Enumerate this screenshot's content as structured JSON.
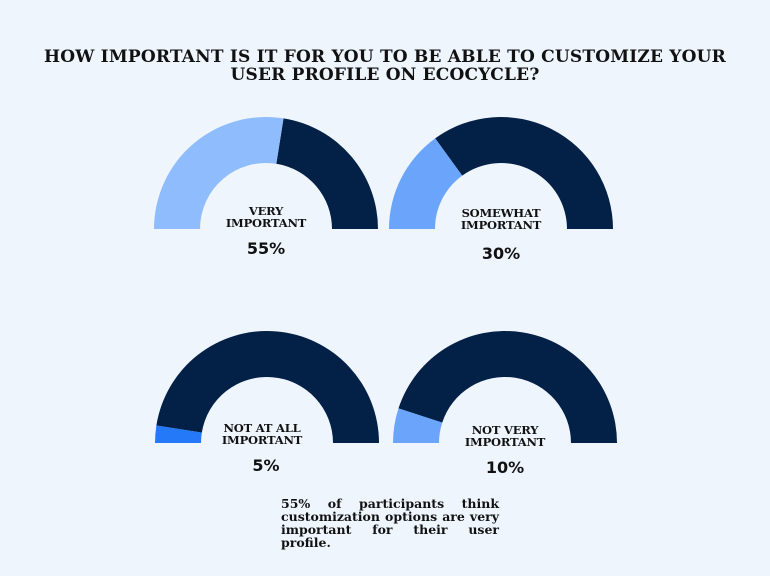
{
  "chart_data": {
    "type": "gauge",
    "title": "HOW IMPORTANT IS IT FOR YOU TO BE ABLE TO CUSTOMIZE YOUR USER PROFILE ON ECOCYCLE?",
    "range": [
      0,
      100
    ],
    "unit": "%",
    "track_color": "#032047",
    "gauges": [
      {
        "id": "very-important",
        "label_lines": [
          "VERY",
          "IMPORTANT"
        ],
        "value": 55,
        "value_text": "55%",
        "fill_color": "#8fbcfd"
      },
      {
        "id": "somewhat-important",
        "label_lines": [
          "SOMEWHAT",
          "IMPORTANT"
        ],
        "value": 30,
        "value_text": "30%",
        "fill_color": "#6aa5fb"
      },
      {
        "id": "not-at-all-important",
        "label_lines": [
          "NOT AT ALL",
          "IMPORTANT"
        ],
        "value": 5,
        "value_text": "5%",
        "fill_color": "#2479f9"
      },
      {
        "id": "not-very-important",
        "label_lines": [
          "NOT VERY",
          "IMPORTANT"
        ],
        "value": 10,
        "value_text": "10%",
        "fill_color": "#6aa5fb"
      }
    ]
  },
  "summary": "55% of participants think customization options are very important for their user profile."
}
